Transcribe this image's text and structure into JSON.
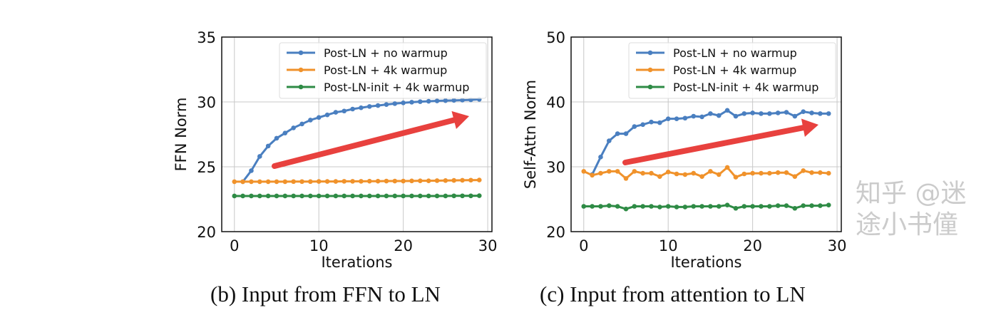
{
  "chart_data": [
    {
      "type": "line",
      "caption": "(b) Input from FFN to LN",
      "xlabel": "Iterations",
      "ylabel": "FFN Norm",
      "xlim": [
        -1.5,
        30.5
      ],
      "ylim": [
        20,
        35
      ],
      "xticks": [
        0,
        10,
        20,
        30
      ],
      "yticks": [
        20,
        25,
        30,
        35
      ],
      "grid": true,
      "legend": "top-right",
      "x": [
        0,
        1,
        2,
        3,
        4,
        5,
        6,
        7,
        8,
        9,
        10,
        11,
        12,
        13,
        14,
        15,
        16,
        17,
        18,
        19,
        20,
        21,
        22,
        23,
        24,
        25,
        26,
        27,
        28,
        29
      ],
      "series": [
        {
          "name": "Post-LN + no warmup",
          "color": "#4a7fc0",
          "values": [
            null,
            23.85,
            24.7,
            25.8,
            26.6,
            27.2,
            27.6,
            28.0,
            28.3,
            28.6,
            28.8,
            29.0,
            29.2,
            29.3,
            29.45,
            29.55,
            29.65,
            29.72,
            29.8,
            29.87,
            29.93,
            29.98,
            30.02,
            30.05,
            30.08,
            30.1,
            30.12,
            30.14,
            30.16,
            30.2
          ]
        },
        {
          "name": "Post-LN + 4k warmup",
          "color": "#f0922b",
          "values": [
            23.85,
            23.85,
            23.85,
            23.85,
            23.85,
            23.85,
            23.85,
            23.86,
            23.86,
            23.86,
            23.87,
            23.87,
            23.87,
            23.88,
            23.88,
            23.88,
            23.89,
            23.89,
            23.9,
            23.9,
            23.9,
            23.91,
            23.92,
            23.92,
            23.93,
            23.94,
            23.95,
            23.96,
            23.97,
            23.98
          ]
        },
        {
          "name": "Post-LN-init + 4k warmup",
          "color": "#2e8b45",
          "values": [
            22.75,
            22.75,
            22.75,
            22.75,
            22.75,
            22.75,
            22.75,
            22.75,
            22.75,
            22.75,
            22.75,
            22.75,
            22.75,
            22.75,
            22.75,
            22.75,
            22.75,
            22.75,
            22.75,
            22.75,
            22.75,
            22.75,
            22.75,
            22.75,
            22.75,
            22.75,
            22.76,
            22.76,
            22.76,
            22.77
          ]
        }
      ]
    },
    {
      "type": "line",
      "caption": "(c) Input from attention to LN",
      "xlabel": "Iterations",
      "ylabel": "Self-Attn Norm",
      "xlim": [
        -1.5,
        30.5
      ],
      "ylim": [
        20,
        50
      ],
      "xticks": [
        0,
        10,
        20,
        30
      ],
      "yticks": [
        20,
        30,
        40,
        50
      ],
      "grid": true,
      "legend": "top-right",
      "x": [
        0,
        1,
        2,
        3,
        4,
        5,
        6,
        7,
        8,
        9,
        10,
        11,
        12,
        13,
        14,
        15,
        16,
        17,
        18,
        19,
        20,
        21,
        22,
        23,
        24,
        25,
        26,
        27,
        28,
        29
      ],
      "series": [
        {
          "name": "Post-LN + no warmup",
          "color": "#4a7fc0",
          "values": [
            null,
            28.8,
            31.5,
            34.0,
            35.1,
            35.1,
            36.2,
            36.5,
            36.9,
            36.8,
            37.4,
            37.4,
            37.5,
            37.8,
            37.7,
            38.2,
            37.9,
            38.7,
            37.8,
            38.2,
            38.3,
            38.2,
            38.2,
            38.3,
            38.4,
            37.8,
            38.5,
            38.3,
            38.2,
            38.2
          ]
        },
        {
          "name": "Post-LN + 4k warmup",
          "color": "#f0922b",
          "values": [
            29.3,
            28.7,
            29.0,
            29.3,
            29.3,
            28.2,
            29.3,
            29.0,
            29.0,
            28.5,
            29.2,
            28.9,
            28.8,
            29.0,
            28.5,
            29.3,
            28.8,
            29.9,
            28.4,
            28.9,
            29.0,
            29.0,
            29.0,
            29.1,
            29.1,
            28.5,
            29.4,
            29.1,
            29.1,
            29.0
          ]
        },
        {
          "name": "Post-LN-init + 4k warmup",
          "color": "#2e8b45",
          "values": [
            23.9,
            23.9,
            23.9,
            24.0,
            23.9,
            23.5,
            23.9,
            23.9,
            23.9,
            23.8,
            23.9,
            23.8,
            23.8,
            23.9,
            23.9,
            23.9,
            23.9,
            24.1,
            23.6,
            23.9,
            23.9,
            23.9,
            23.9,
            24.0,
            24.0,
            23.6,
            24.0,
            24.0,
            24.0,
            24.1
          ]
        }
      ]
    }
  ],
  "arrow_color": "#e8413e",
  "watermark": "知乎 @迷途小书僮"
}
